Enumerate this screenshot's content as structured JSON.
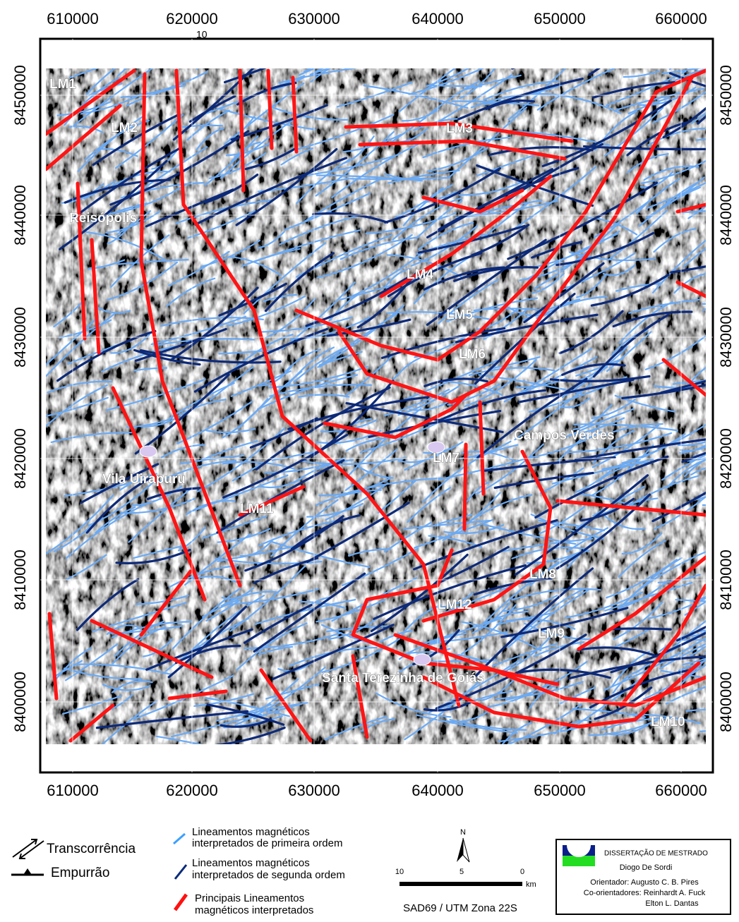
{
  "map": {
    "x_labels": [
      610000,
      620000,
      630000,
      640000,
      650000,
      660000
    ],
    "y_labels": [
      8450000,
      8440000,
      8430000,
      8420000,
      8410000,
      8400000
    ],
    "corner_mark": "10",
    "places": [
      "LM1",
      "LM2",
      "Reisópolis",
      "LM3",
      "LM4",
      "LM5",
      "LM6",
      "Campos Verdes",
      "LM7",
      "Vila Uirapuru",
      "LM11",
      "LM8",
      "LM12",
      "LM9",
      "Santa Terezinha de Goiás",
      "LM10"
    ]
  },
  "legend": {
    "strike_slip": "Transcorrência",
    "thrust": "Empurrão",
    "first_order": [
      "Lineamentos magnéticos",
      "interpretados de primeira ordem"
    ],
    "second_order": [
      "Lineamentos magnéticos",
      "interpretados de segunda ordem"
    ],
    "main": [
      "Principais Lineamentos",
      "magnéticos interpretados"
    ]
  },
  "scale": {
    "north": "N",
    "labels": [
      "10",
      "5",
      "0"
    ],
    "unit": "km",
    "datum": "SAD69 / UTM Zona 22S"
  },
  "credits": {
    "title": "DISSERTAÇÃO DE MESTRADO",
    "author": "Diogo De Sordi",
    "advisor": "Orientador: Augusto C. B. Pires",
    "coadvisors": "Co-orientadores: Reinhardt A. Fuck",
    "coadvisor2": "Elton L. Dantas"
  }
}
